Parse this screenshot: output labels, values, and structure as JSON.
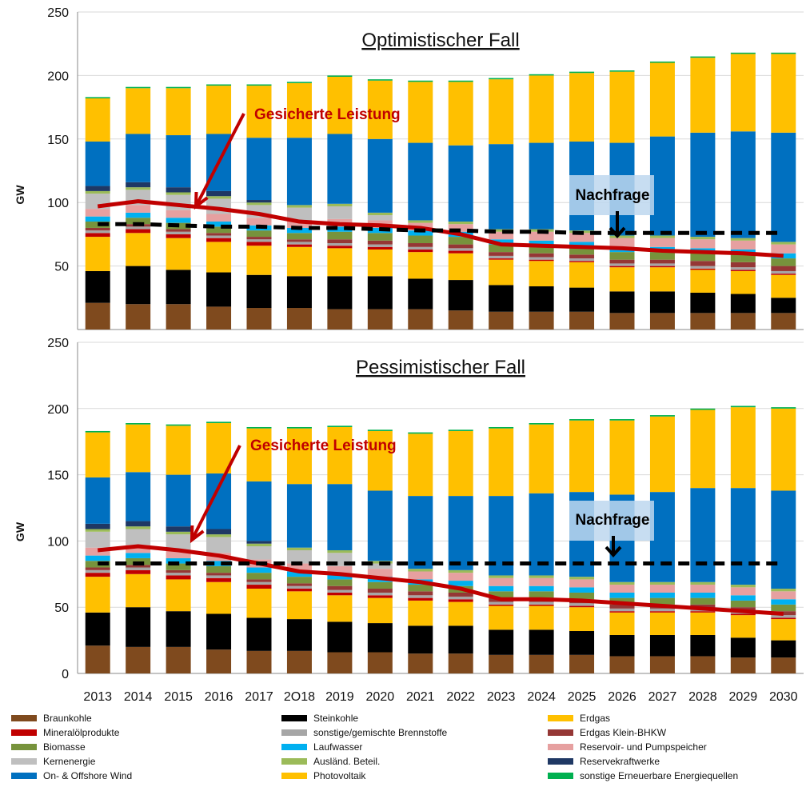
{
  "chart_data": [
    {
      "type": "bar",
      "stacked": true,
      "title": "Optimistischer Fall",
      "ylabel": "GW",
      "ylim": [
        0,
        250
      ],
      "yticks": [
        50,
        100,
        150,
        200,
        250
      ],
      "categories": [
        "2013",
        "2014",
        "2015",
        "2016",
        "2017",
        "2O18",
        "2019",
        "2020",
        "2021",
        "2022",
        "2023",
        "2024",
        "2025",
        "2026",
        "2027",
        "2028",
        "2029",
        "2030"
      ],
      "series": [
        {
          "name": "Braunkohle",
          "color": "#7f4a1e",
          "values": [
            21,
            20,
            20,
            18,
            17,
            17,
            16,
            16,
            16,
            15,
            14,
            14,
            14,
            13,
            13,
            13,
            13,
            13
          ]
        },
        {
          "name": "Steinkohle",
          "color": "#000000",
          "values": [
            25,
            30,
            27,
            27,
            26,
            25,
            26,
            26,
            24,
            24,
            21,
            20,
            19,
            17,
            17,
            16,
            15,
            12
          ]
        },
        {
          "name": "Erdgas",
          "color": "#ffc000",
          "values": [
            27,
            26,
            25,
            24,
            23,
            23,
            22,
            21,
            21,
            21,
            20,
            20,
            20,
            19,
            19,
            18,
            18,
            18
          ]
        },
        {
          "name": "Mineralölprodukte",
          "color": "#c00000",
          "values": [
            3,
            3,
            3,
            3,
            3,
            2,
            2,
            2,
            2,
            2,
            1,
            1,
            1,
            1,
            1,
            1,
            1,
            1
          ]
        },
        {
          "name": "sonstige/gemischte Brennstoffe",
          "color": "#a6a6a6",
          "values": [
            2,
            2,
            2,
            2,
            2,
            2,
            2,
            2,
            2,
            2,
            2,
            2,
            2,
            2,
            2,
            2,
            2,
            2
          ]
        },
        {
          "name": "Erdgas Klein-BHKW",
          "color": "#953735",
          "values": [
            2,
            2,
            2,
            2,
            2,
            2,
            3,
            3,
            3,
            3,
            3,
            3,
            3,
            3,
            3,
            4,
            4,
            4
          ]
        },
        {
          "name": "Biomasse",
          "color": "#77933c",
          "values": [
            5,
            5,
            5,
            5,
            5,
            5,
            6,
            6,
            6,
            6,
            6,
            6,
            6,
            6,
            6,
            6,
            6,
            6
          ]
        },
        {
          "name": "Laufwasser",
          "color": "#00b0f0",
          "values": [
            4,
            4,
            4,
            4,
            4,
            4,
            4,
            4,
            4,
            4,
            4,
            4,
            4,
            4,
            4,
            4,
            4,
            4
          ]
        },
        {
          "name": "Reservoir- und Pumpspeicher",
          "color": "#e6a0a0",
          "values": [
            6,
            6,
            6,
            6,
            6,
            6,
            6,
            6,
            6,
            6,
            6,
            7,
            7,
            7,
            7,
            7,
            7,
            7
          ]
        },
        {
          "name": "Kernenergie",
          "color": "#bfbfbf",
          "values": [
            12,
            12,
            12,
            12,
            10,
            10,
            10,
            4,
            0,
            0,
            0,
            0,
            0,
            0,
            0,
            0,
            0,
            0
          ]
        },
        {
          "name": "Ausländ. Beteil.",
          "color": "#9bbb59",
          "values": [
            2,
            2,
            2,
            2,
            2,
            2,
            2,
            2,
            2,
            2,
            2,
            2,
            2,
            2,
            2,
            2,
            2,
            2
          ]
        },
        {
          "name": "Reservekraftwerke",
          "color": "#1f3864",
          "values": [
            4,
            4,
            4,
            4,
            2,
            0,
            0,
            0,
            0,
            0,
            0,
            0,
            0,
            0,
            0,
            0,
            0,
            0
          ]
        },
        {
          "name": "On- & Offshore Wind",
          "color": "#0070c0",
          "values": [
            35,
            38,
            41,
            45,
            49,
            53,
            55,
            58,
            61,
            60,
            67,
            68,
            70,
            73,
            78,
            82,
            84,
            86
          ]
        },
        {
          "name": "Photovoltaik",
          "color": "#ffc000",
          "values": [
            34,
            36,
            37,
            38,
            41,
            43,
            45,
            46,
            48,
            50,
            51,
            53,
            54,
            56,
            58,
            59,
            61,
            62
          ]
        },
        {
          "name": "sonstige Erneuerbare Energiequellen",
          "color": "#00b050",
          "values": [
            1,
            1,
            1,
            1,
            1,
            1,
            1,
            1,
            1,
            1,
            1,
            1,
            1,
            1,
            1,
            1,
            1,
            1
          ]
        }
      ],
      "lines": [
        {
          "name": "Gesicherte Leistung",
          "color": "#c00000",
          "values": [
            97,
            101,
            98,
            95,
            91,
            85,
            83,
            82,
            80,
            75,
            67,
            66,
            65,
            64,
            62,
            61,
            60,
            58
          ]
        },
        {
          "name": "Nachfrage",
          "color": "#000000",
          "dashed": true,
          "values": [
            83,
            83,
            82,
            81,
            81,
            80,
            80,
            79,
            78,
            78,
            77,
            77,
            76,
            76,
            76,
            76,
            76,
            76
          ]
        }
      ],
      "annotations": [
        {
          "text": "Gesicherte Leistung",
          "color": "#c00000"
        },
        {
          "text": "Nachfrage",
          "color": "#000000"
        }
      ]
    },
    {
      "type": "bar",
      "stacked": true,
      "title": "Pessimistischer Fall",
      "ylabel": "GW",
      "ylim": [
        0,
        250
      ],
      "yticks": [
        0,
        50,
        100,
        150,
        200,
        250
      ],
      "categories": [
        "2013",
        "2014",
        "2015",
        "2016",
        "2017",
        "2O18",
        "2019",
        "2020",
        "2021",
        "2022",
        "2023",
        "2024",
        "2025",
        "2026",
        "2027",
        "2028",
        "2029",
        "2030"
      ],
      "series": [
        {
          "name": "Braunkohle",
          "color": "#7f4a1e",
          "values": [
            21,
            20,
            20,
            18,
            17,
            17,
            16,
            16,
            15,
            15,
            14,
            14,
            14,
            13,
            13,
            13,
            12,
            12
          ]
        },
        {
          "name": "Steinkohle",
          "color": "#000000",
          "values": [
            25,
            30,
            27,
            27,
            25,
            24,
            23,
            22,
            21,
            21,
            19,
            19,
            18,
            16,
            16,
            16,
            15,
            13
          ]
        },
        {
          "name": "Erdgas",
          "color": "#ffc000",
          "values": [
            27,
            25,
            24,
            24,
            22,
            21,
            20,
            19,
            19,
            18,
            18,
            18,
            18,
            17,
            17,
            17,
            17,
            16
          ]
        },
        {
          "name": "Mineralölprodukte",
          "color": "#c00000",
          "values": [
            3,
            3,
            3,
            3,
            3,
            2,
            2,
            2,
            2,
            2,
            1,
            1,
            1,
            1,
            1,
            1,
            1,
            1
          ]
        },
        {
          "name": "sonstige/gemischte Brennstoffe",
          "color": "#a6a6a6",
          "values": [
            2,
            2,
            2,
            2,
            2,
            2,
            2,
            2,
            2,
            2,
            2,
            2,
            2,
            2,
            2,
            2,
            2,
            2
          ]
        },
        {
          "name": "Erdgas Klein-BHKW",
          "color": "#953735",
          "values": [
            2,
            2,
            2,
            2,
            2,
            2,
            3,
            3,
            3,
            3,
            3,
            3,
            3,
            3,
            3,
            3,
            3,
            3
          ]
        },
        {
          "name": "Biomasse",
          "color": "#77933c",
          "values": [
            5,
            5,
            5,
            5,
            5,
            5,
            5,
            5,
            5,
            5,
            5,
            5,
            5,
            5,
            5,
            5,
            5,
            5
          ]
        },
        {
          "name": "Laufwasser",
          "color": "#00b0f0",
          "values": [
            4,
            4,
            4,
            4,
            4,
            4,
            4,
            4,
            4,
            4,
            4,
            4,
            4,
            4,
            4,
            4,
            4,
            4
          ]
        },
        {
          "name": "Reservoir- und Pumpspeicher",
          "color": "#e6a0a0",
          "values": [
            6,
            6,
            6,
            6,
            6,
            6,
            6,
            6,
            6,
            6,
            6,
            6,
            6,
            6,
            6,
            6,
            6,
            6
          ]
        },
        {
          "name": "Kernenergie",
          "color": "#bfbfbf",
          "values": [
            12,
            12,
            12,
            12,
            10,
            10,
            10,
            4,
            0,
            0,
            0,
            0,
            0,
            0,
            0,
            0,
            0,
            0
          ]
        },
        {
          "name": "Ausländ. Beteil.",
          "color": "#9bbb59",
          "values": [
            2,
            2,
            2,
            2,
            2,
            2,
            2,
            2,
            2,
            2,
            2,
            2,
            2,
            2,
            2,
            2,
            2,
            2
          ]
        },
        {
          "name": "Reservekraftwerke",
          "color": "#1f3864",
          "values": [
            4,
            4,
            4,
            4,
            2,
            0,
            0,
            0,
            0,
            0,
            0,
            0,
            0,
            0,
            0,
            0,
            0,
            0
          ]
        },
        {
          "name": "On- & Offshore Wind",
          "color": "#0070c0",
          "values": [
            35,
            37,
            39,
            42,
            45,
            48,
            50,
            53,
            55,
            56,
            60,
            62,
            64,
            66,
            68,
            71,
            73,
            74
          ]
        },
        {
          "name": "Photovoltaik",
          "color": "#ffc000",
          "values": [
            34,
            36,
            37,
            38,
            40,
            42,
            43,
            45,
            47,
            49,
            51,
            52,
            54,
            56,
            57,
            59,
            61,
            62
          ]
        },
        {
          "name": "sonstige Erneuerbare Energiequellen",
          "color": "#00b050",
          "values": [
            1,
            1,
            1,
            1,
            1,
            1,
            1,
            1,
            1,
            1,
            1,
            1,
            1,
            1,
            1,
            1,
            1,
            1
          ]
        }
      ],
      "lines": [
        {
          "name": "Gesicherte Leistung",
          "color": "#c00000",
          "values": [
            93,
            96,
            93,
            89,
            83,
            77,
            75,
            72,
            69,
            64,
            56,
            56,
            55,
            53,
            51,
            49,
            47,
            45
          ]
        },
        {
          "name": "Nachfrage",
          "color": "#000000",
          "dashed": true,
          "values": [
            83,
            83,
            83,
            83,
            83,
            83,
            83,
            83,
            83,
            83,
            83,
            83,
            83,
            83,
            83,
            83,
            83,
            83
          ]
        }
      ],
      "annotations": [
        {
          "text": "Gesicherte Leistung",
          "color": "#c00000"
        },
        {
          "text": "Nachfrage",
          "color": "#000000"
        }
      ]
    }
  ],
  "legend": [
    {
      "label": "Braunkohle",
      "color": "#7f4a1e"
    },
    {
      "label": "Steinkohle",
      "color": "#000000"
    },
    {
      "label": "Erdgas",
      "color": "#ffc000"
    },
    {
      "label": "Mineralölprodukte",
      "color": "#c00000"
    },
    {
      "label": "sonstige/gemischte Brennstoffe",
      "color": "#a6a6a6"
    },
    {
      "label": "Erdgas Klein-BHKW",
      "color": "#953735"
    },
    {
      "label": "Biomasse",
      "color": "#77933c"
    },
    {
      "label": "Laufwasser",
      "color": "#00b0f0"
    },
    {
      "label": "Reservoir- und Pumpspeicher",
      "color": "#e6a0a0"
    },
    {
      "label": "Kernenergie",
      "color": "#bfbfbf"
    },
    {
      "label": "Ausländ. Beteil.",
      "color": "#9bbb59"
    },
    {
      "label": "Reservekraftwerke",
      "color": "#1f3864"
    },
    {
      "label": "On- & Offshore Wind",
      "color": "#0070c0"
    },
    {
      "label": "Photovoltaik",
      "color": "#ffc000"
    },
    {
      "label": "sonstige Erneuerbare Energiequellen",
      "color": "#00b050"
    }
  ]
}
